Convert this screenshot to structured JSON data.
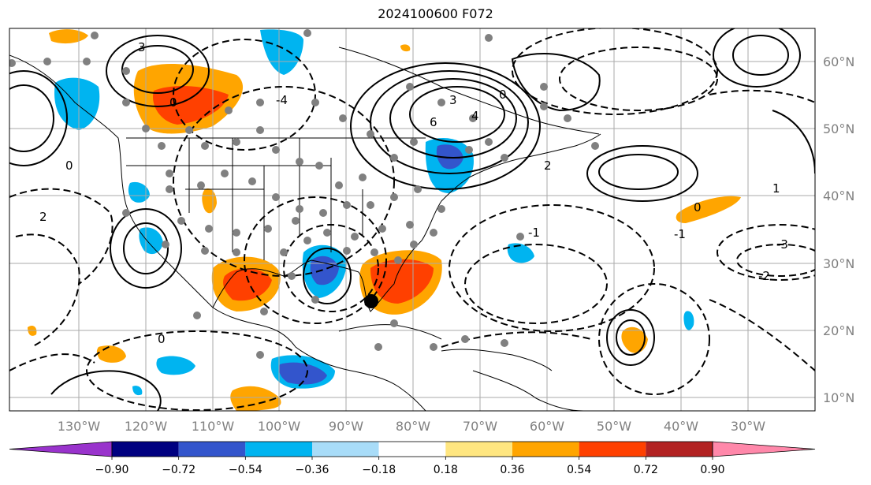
{
  "title": "2024100600 F072",
  "lon_ticks": [
    "130°W",
    "120°W",
    "110°W",
    "100°W",
    "90°W",
    "80°W",
    "70°W",
    "60°W",
    "50°W",
    "40°W",
    "30°W"
  ],
  "lat_ticks": [
    "60°N",
    "50°N",
    "40°N",
    "30°N",
    "20°N",
    "10°N"
  ],
  "colorbar": {
    "labels": [
      "−0.90",
      "−0.72",
      "−0.54",
      "−0.36",
      "−0.18",
      "0.18",
      "0.36",
      "0.54",
      "0.72",
      "0.90"
    ],
    "colors": [
      "#9933cc",
      "#000080",
      "#3355cc",
      "#00b4f0",
      "#a8dcf8",
      "#ffffff",
      "#ffe680",
      "#ffa500",
      "#ff4000",
      "#b22222",
      "#ff88aa"
    ]
  },
  "storm_marker": {
    "name": "storm-center",
    "lon": -86.0,
    "lat": 24.5
  },
  "contour_labels": [
    "3",
    "0",
    "6",
    "4",
    "2",
    "1",
    "-1",
    "-2",
    "-3",
    "-4"
  ],
  "colors": {
    "frame": "#000000",
    "grid": "#aaaaaa",
    "coast": "#000000",
    "dots": "#808080"
  }
}
